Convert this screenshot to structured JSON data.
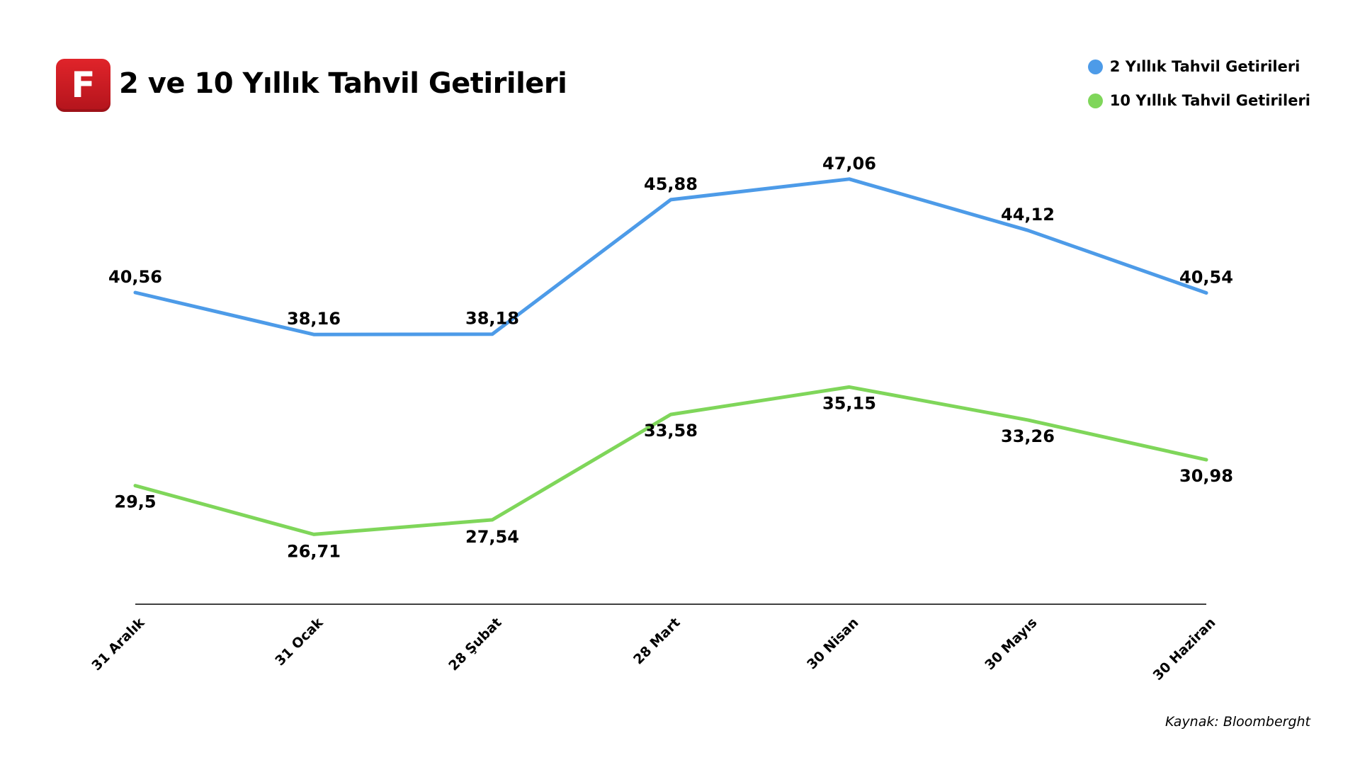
{
  "header": {
    "logo_letter": "F",
    "title": "2 ve 10 Yıllık Tahvil Getirileri"
  },
  "legend": {
    "items": [
      {
        "label": "2 Yıllık Tahvil Getirileri",
        "color": "#4d9be8"
      },
      {
        "label": "10 Yıllık Tahvil Getirileri",
        "color": "#7fd65a"
      }
    ]
  },
  "source": "Kaynak: Bloomberght",
  "chart_data": {
    "type": "line",
    "title": "2 ve 10 Yıllık Tahvil Getirileri",
    "xlabel": "",
    "ylabel": "",
    "categories": [
      "31 Aralık",
      "31 Ocak",
      "28 Şubat",
      "28 Mart",
      "30 Nisan",
      "30 Mayıs",
      "30 Haziran"
    ],
    "series": [
      {
        "name": "2 Yıllık Tahvil Getirileri",
        "color": "#4d9be8",
        "values": [
          40.56,
          38.16,
          38.18,
          45.88,
          47.06,
          44.12,
          40.54
        ],
        "labels": [
          "40,56",
          "38,16",
          "38,18",
          "45,88",
          "47,06",
          "44,12",
          "40,54"
        ]
      },
      {
        "name": "10 Yıllık Tahvil Getirileri",
        "color": "#7fd65a",
        "values": [
          29.5,
          26.71,
          27.54,
          33.58,
          35.15,
          33.26,
          30.98
        ],
        "labels": [
          "29,5",
          "26,71",
          "27,54",
          "33,58",
          "35,15",
          "33,26",
          "30,98"
        ]
      }
    ],
    "grid": false,
    "legend_position": "top-right"
  }
}
